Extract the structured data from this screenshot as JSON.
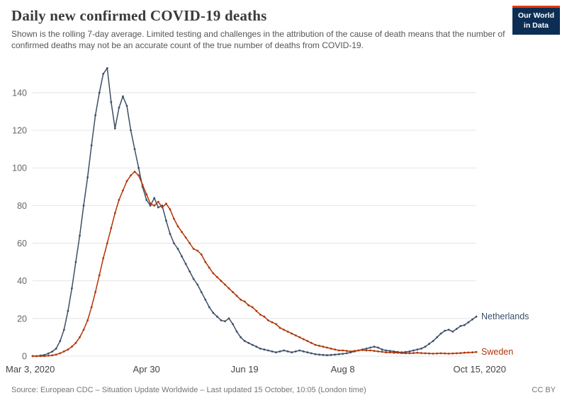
{
  "header": {
    "title": "Daily new confirmed COVID-19 deaths",
    "subtitle": "Shown is the rolling 7-day average. Limited testing and challenges in the attribution of the cause of death means that the number of confirmed deaths may not be an accurate count of the true number of deaths from COVID-19.",
    "logo": {
      "line1": "Our World",
      "line2": "in Data",
      "bg": "#0d2e54",
      "accent": "#E63912"
    }
  },
  "footer": {
    "source": "Source: European CDC – Situation Update Worldwide – Last updated 15 October, 10:05 (London time)",
    "license": "CC BY"
  },
  "chart_data": {
    "type": "line",
    "title": "Daily new confirmed COVID-19 deaths",
    "x_unit": "days since Mar 3, 2020",
    "xlim": [
      0,
      226
    ],
    "ylim": [
      0,
      155
    ],
    "grid": true,
    "legend_position": "right-end-labels",
    "x_ticks": [
      {
        "day": 0,
        "label": "Mar 3, 2020"
      },
      {
        "day": 58,
        "label": "Apr 30"
      },
      {
        "day": 108,
        "label": "Jun 19"
      },
      {
        "day": 158,
        "label": "Aug 8"
      },
      {
        "day": 226,
        "label": "Oct 15, 2020"
      }
    ],
    "y_ticks": [
      0,
      20,
      40,
      60,
      80,
      100,
      120,
      140
    ],
    "series": [
      {
        "name": "Netherlands",
        "color": "#3C4E66",
        "points": [
          [
            0,
            0
          ],
          [
            2,
            0
          ],
          [
            4,
            0.3
          ],
          [
            6,
            0.6
          ],
          [
            8,
            1.4
          ],
          [
            10,
            2.4
          ],
          [
            12,
            4
          ],
          [
            14,
            8
          ],
          [
            16,
            14
          ],
          [
            18,
            24
          ],
          [
            20,
            36
          ],
          [
            22,
            50
          ],
          [
            24,
            64
          ],
          [
            26,
            80
          ],
          [
            28,
            95
          ],
          [
            30,
            112
          ],
          [
            32,
            128
          ],
          [
            34,
            140
          ],
          [
            36,
            150
          ],
          [
            38,
            153
          ],
          [
            40,
            135
          ],
          [
            42,
            121
          ],
          [
            44,
            132
          ],
          [
            46,
            138
          ],
          [
            48,
            133
          ],
          [
            50,
            120
          ],
          [
            52,
            110
          ],
          [
            54,
            100
          ],
          [
            56,
            90
          ],
          [
            58,
            83
          ],
          [
            60,
            80
          ],
          [
            62,
            84
          ],
          [
            64,
            79
          ],
          [
            66,
            80
          ],
          [
            68,
            72
          ],
          [
            70,
            65
          ],
          [
            72,
            60
          ],
          [
            74,
            57
          ],
          [
            76,
            53
          ],
          [
            78,
            49
          ],
          [
            80,
            45
          ],
          [
            82,
            41
          ],
          [
            84,
            38
          ],
          [
            86,
            34
          ],
          [
            88,
            30
          ],
          [
            90,
            26
          ],
          [
            92,
            23
          ],
          [
            94,
            21
          ],
          [
            96,
            19
          ],
          [
            98,
            18.5
          ],
          [
            100,
            20
          ],
          [
            102,
            17
          ],
          [
            104,
            13
          ],
          [
            106,
            10
          ],
          [
            108,
            8
          ],
          [
            110,
            7
          ],
          [
            112,
            6
          ],
          [
            114,
            5
          ],
          [
            116,
            4
          ],
          [
            118,
            3.5
          ],
          [
            120,
            3
          ],
          [
            122,
            2.5
          ],
          [
            124,
            2
          ],
          [
            126,
            2.5
          ],
          [
            128,
            3
          ],
          [
            130,
            2.5
          ],
          [
            132,
            2
          ],
          [
            134,
            2.5
          ],
          [
            136,
            3
          ],
          [
            138,
            2.5
          ],
          [
            140,
            2
          ],
          [
            142,
            1.5
          ],
          [
            144,
            1
          ],
          [
            146,
            0.8
          ],
          [
            148,
            0.6
          ],
          [
            150,
            0.5
          ],
          [
            152,
            0.6
          ],
          [
            154,
            0.8
          ],
          [
            156,
            1
          ],
          [
            158,
            1.2
          ],
          [
            160,
            1.5
          ],
          [
            162,
            2
          ],
          [
            164,
            2.5
          ],
          [
            166,
            3
          ],
          [
            168,
            3.5
          ],
          [
            170,
            4
          ],
          [
            172,
            4.5
          ],
          [
            174,
            5
          ],
          [
            176,
            4.5
          ],
          [
            178,
            3.5
          ],
          [
            180,
            3
          ],
          [
            182,
            2.8
          ],
          [
            184,
            2.5
          ],
          [
            186,
            2.2
          ],
          [
            188,
            2
          ],
          [
            190,
            2.2
          ],
          [
            192,
            2.5
          ],
          [
            194,
            3
          ],
          [
            196,
            3.5
          ],
          [
            198,
            4
          ],
          [
            200,
            5
          ],
          [
            202,
            6.5
          ],
          [
            204,
            8
          ],
          [
            206,
            10
          ],
          [
            208,
            12
          ],
          [
            210,
            13.5
          ],
          [
            212,
            14
          ],
          [
            214,
            13
          ],
          [
            216,
            14.5
          ],
          [
            218,
            16
          ],
          [
            220,
            16.5
          ],
          [
            222,
            18
          ],
          [
            224,
            19.5
          ],
          [
            226,
            21
          ]
        ]
      },
      {
        "name": "Sweden",
        "color": "#B13507",
        "points": [
          [
            0,
            0
          ],
          [
            2,
            0
          ],
          [
            4,
            0
          ],
          [
            6,
            0
          ],
          [
            8,
            0.2
          ],
          [
            10,
            0.4
          ],
          [
            12,
            0.8
          ],
          [
            14,
            1.5
          ],
          [
            16,
            2.5
          ],
          [
            18,
            3.5
          ],
          [
            20,
            5
          ],
          [
            22,
            7
          ],
          [
            24,
            10
          ],
          [
            26,
            14
          ],
          [
            28,
            19
          ],
          [
            30,
            26
          ],
          [
            32,
            34
          ],
          [
            34,
            43
          ],
          [
            36,
            52
          ],
          [
            38,
            60
          ],
          [
            40,
            68
          ],
          [
            42,
            76
          ],
          [
            44,
            83
          ],
          [
            46,
            88
          ],
          [
            48,
            93
          ],
          [
            50,
            96
          ],
          [
            52,
            98
          ],
          [
            54,
            96
          ],
          [
            56,
            91
          ],
          [
            58,
            86
          ],
          [
            60,
            81
          ],
          [
            62,
            80
          ],
          [
            64,
            82
          ],
          [
            66,
            79
          ],
          [
            68,
            81
          ],
          [
            70,
            78
          ],
          [
            72,
            73
          ],
          [
            74,
            69
          ],
          [
            76,
            66
          ],
          [
            78,
            63
          ],
          [
            80,
            60
          ],
          [
            82,
            57
          ],
          [
            84,
            56
          ],
          [
            86,
            54
          ],
          [
            88,
            50
          ],
          [
            90,
            47
          ],
          [
            92,
            44
          ],
          [
            94,
            42
          ],
          [
            96,
            40
          ],
          [
            98,
            38
          ],
          [
            100,
            36
          ],
          [
            102,
            34
          ],
          [
            104,
            32
          ],
          [
            106,
            30
          ],
          [
            108,
            29
          ],
          [
            110,
            27
          ],
          [
            112,
            26
          ],
          [
            114,
            24
          ],
          [
            116,
            22
          ],
          [
            118,
            21
          ],
          [
            120,
            19
          ],
          [
            122,
            18
          ],
          [
            124,
            17
          ],
          [
            126,
            15
          ],
          [
            128,
            14
          ],
          [
            130,
            13
          ],
          [
            132,
            12
          ],
          [
            134,
            11
          ],
          [
            136,
            10
          ],
          [
            138,
            9
          ],
          [
            140,
            8
          ],
          [
            142,
            7
          ],
          [
            144,
            6
          ],
          [
            146,
            5.5
          ],
          [
            148,
            5
          ],
          [
            150,
            4.5
          ],
          [
            152,
            4
          ],
          [
            154,
            3.5
          ],
          [
            156,
            3
          ],
          [
            158,
            3
          ],
          [
            160,
            2.8
          ],
          [
            162,
            2.5
          ],
          [
            164,
            2.8
          ],
          [
            166,
            3
          ],
          [
            168,
            3.2
          ],
          [
            170,
            3
          ],
          [
            172,
            3
          ],
          [
            174,
            2.8
          ],
          [
            176,
            2.5
          ],
          [
            178,
            2.3
          ],
          [
            180,
            2
          ],
          [
            182,
            2
          ],
          [
            184,
            1.8
          ],
          [
            186,
            1.8
          ],
          [
            188,
            1.6
          ],
          [
            190,
            1.5
          ],
          [
            192,
            1.5
          ],
          [
            194,
            1.6
          ],
          [
            196,
            1.8
          ],
          [
            198,
            1.6
          ],
          [
            200,
            1.5
          ],
          [
            202,
            1.4
          ],
          [
            204,
            1.3
          ],
          [
            206,
            1.4
          ],
          [
            208,
            1.5
          ],
          [
            210,
            1.4
          ],
          [
            212,
            1.3
          ],
          [
            214,
            1.4
          ],
          [
            216,
            1.5
          ],
          [
            218,
            1.6
          ],
          [
            220,
            1.8
          ],
          [
            222,
            1.9
          ],
          [
            224,
            2
          ],
          [
            226,
            2.2
          ]
        ]
      }
    ]
  }
}
